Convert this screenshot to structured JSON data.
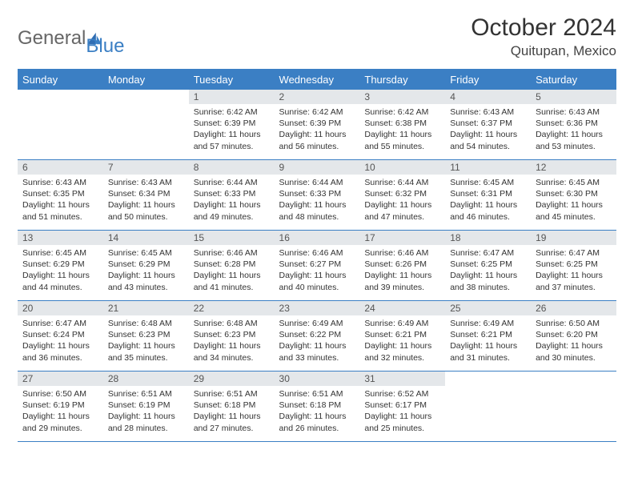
{
  "brand": {
    "part1": "General",
    "part2": "Blue"
  },
  "title": "October 2024",
  "location": "Quitupan, Mexico",
  "colors": {
    "header_bg": "#3b7fc4",
    "header_text": "#ffffff",
    "daynum_bg": "#e4e7ea",
    "text": "#333333",
    "rule": "#3b7fc4"
  },
  "typography": {
    "title_fontsize": 30,
    "location_fontsize": 17,
    "weekday_fontsize": 13,
    "daynum_fontsize": 12,
    "cell_fontsize": 10.5
  },
  "weekdays": [
    "Sunday",
    "Monday",
    "Tuesday",
    "Wednesday",
    "Thursday",
    "Friday",
    "Saturday"
  ],
  "weeks": [
    [
      {
        "day": "",
        "sunrise": "",
        "sunset": "",
        "daylight": ""
      },
      {
        "day": "",
        "sunrise": "",
        "sunset": "",
        "daylight": ""
      },
      {
        "day": "1",
        "sunrise": "Sunrise: 6:42 AM",
        "sunset": "Sunset: 6:39 PM",
        "daylight": "Daylight: 11 hours and 57 minutes."
      },
      {
        "day": "2",
        "sunrise": "Sunrise: 6:42 AM",
        "sunset": "Sunset: 6:39 PM",
        "daylight": "Daylight: 11 hours and 56 minutes."
      },
      {
        "day": "3",
        "sunrise": "Sunrise: 6:42 AM",
        "sunset": "Sunset: 6:38 PM",
        "daylight": "Daylight: 11 hours and 55 minutes."
      },
      {
        "day": "4",
        "sunrise": "Sunrise: 6:43 AM",
        "sunset": "Sunset: 6:37 PM",
        "daylight": "Daylight: 11 hours and 54 minutes."
      },
      {
        "day": "5",
        "sunrise": "Sunrise: 6:43 AM",
        "sunset": "Sunset: 6:36 PM",
        "daylight": "Daylight: 11 hours and 53 minutes."
      }
    ],
    [
      {
        "day": "6",
        "sunrise": "Sunrise: 6:43 AM",
        "sunset": "Sunset: 6:35 PM",
        "daylight": "Daylight: 11 hours and 51 minutes."
      },
      {
        "day": "7",
        "sunrise": "Sunrise: 6:43 AM",
        "sunset": "Sunset: 6:34 PM",
        "daylight": "Daylight: 11 hours and 50 minutes."
      },
      {
        "day": "8",
        "sunrise": "Sunrise: 6:44 AM",
        "sunset": "Sunset: 6:33 PM",
        "daylight": "Daylight: 11 hours and 49 minutes."
      },
      {
        "day": "9",
        "sunrise": "Sunrise: 6:44 AM",
        "sunset": "Sunset: 6:33 PM",
        "daylight": "Daylight: 11 hours and 48 minutes."
      },
      {
        "day": "10",
        "sunrise": "Sunrise: 6:44 AM",
        "sunset": "Sunset: 6:32 PM",
        "daylight": "Daylight: 11 hours and 47 minutes."
      },
      {
        "day": "11",
        "sunrise": "Sunrise: 6:45 AM",
        "sunset": "Sunset: 6:31 PM",
        "daylight": "Daylight: 11 hours and 46 minutes."
      },
      {
        "day": "12",
        "sunrise": "Sunrise: 6:45 AM",
        "sunset": "Sunset: 6:30 PM",
        "daylight": "Daylight: 11 hours and 45 minutes."
      }
    ],
    [
      {
        "day": "13",
        "sunrise": "Sunrise: 6:45 AM",
        "sunset": "Sunset: 6:29 PM",
        "daylight": "Daylight: 11 hours and 44 minutes."
      },
      {
        "day": "14",
        "sunrise": "Sunrise: 6:45 AM",
        "sunset": "Sunset: 6:29 PM",
        "daylight": "Daylight: 11 hours and 43 minutes."
      },
      {
        "day": "15",
        "sunrise": "Sunrise: 6:46 AM",
        "sunset": "Sunset: 6:28 PM",
        "daylight": "Daylight: 11 hours and 41 minutes."
      },
      {
        "day": "16",
        "sunrise": "Sunrise: 6:46 AM",
        "sunset": "Sunset: 6:27 PM",
        "daylight": "Daylight: 11 hours and 40 minutes."
      },
      {
        "day": "17",
        "sunrise": "Sunrise: 6:46 AM",
        "sunset": "Sunset: 6:26 PM",
        "daylight": "Daylight: 11 hours and 39 minutes."
      },
      {
        "day": "18",
        "sunrise": "Sunrise: 6:47 AM",
        "sunset": "Sunset: 6:25 PM",
        "daylight": "Daylight: 11 hours and 38 minutes."
      },
      {
        "day": "19",
        "sunrise": "Sunrise: 6:47 AM",
        "sunset": "Sunset: 6:25 PM",
        "daylight": "Daylight: 11 hours and 37 minutes."
      }
    ],
    [
      {
        "day": "20",
        "sunrise": "Sunrise: 6:47 AM",
        "sunset": "Sunset: 6:24 PM",
        "daylight": "Daylight: 11 hours and 36 minutes."
      },
      {
        "day": "21",
        "sunrise": "Sunrise: 6:48 AM",
        "sunset": "Sunset: 6:23 PM",
        "daylight": "Daylight: 11 hours and 35 minutes."
      },
      {
        "day": "22",
        "sunrise": "Sunrise: 6:48 AM",
        "sunset": "Sunset: 6:23 PM",
        "daylight": "Daylight: 11 hours and 34 minutes."
      },
      {
        "day": "23",
        "sunrise": "Sunrise: 6:49 AM",
        "sunset": "Sunset: 6:22 PM",
        "daylight": "Daylight: 11 hours and 33 minutes."
      },
      {
        "day": "24",
        "sunrise": "Sunrise: 6:49 AM",
        "sunset": "Sunset: 6:21 PM",
        "daylight": "Daylight: 11 hours and 32 minutes."
      },
      {
        "day": "25",
        "sunrise": "Sunrise: 6:49 AM",
        "sunset": "Sunset: 6:21 PM",
        "daylight": "Daylight: 11 hours and 31 minutes."
      },
      {
        "day": "26",
        "sunrise": "Sunrise: 6:50 AM",
        "sunset": "Sunset: 6:20 PM",
        "daylight": "Daylight: 11 hours and 30 minutes."
      }
    ],
    [
      {
        "day": "27",
        "sunrise": "Sunrise: 6:50 AM",
        "sunset": "Sunset: 6:19 PM",
        "daylight": "Daylight: 11 hours and 29 minutes."
      },
      {
        "day": "28",
        "sunrise": "Sunrise: 6:51 AM",
        "sunset": "Sunset: 6:19 PM",
        "daylight": "Daylight: 11 hours and 28 minutes."
      },
      {
        "day": "29",
        "sunrise": "Sunrise: 6:51 AM",
        "sunset": "Sunset: 6:18 PM",
        "daylight": "Daylight: 11 hours and 27 minutes."
      },
      {
        "day": "30",
        "sunrise": "Sunrise: 6:51 AM",
        "sunset": "Sunset: 6:18 PM",
        "daylight": "Daylight: 11 hours and 26 minutes."
      },
      {
        "day": "31",
        "sunrise": "Sunrise: 6:52 AM",
        "sunset": "Sunset: 6:17 PM",
        "daylight": "Daylight: 11 hours and 25 minutes."
      },
      {
        "day": "",
        "sunrise": "",
        "sunset": "",
        "daylight": ""
      },
      {
        "day": "",
        "sunrise": "",
        "sunset": "",
        "daylight": ""
      }
    ]
  ]
}
